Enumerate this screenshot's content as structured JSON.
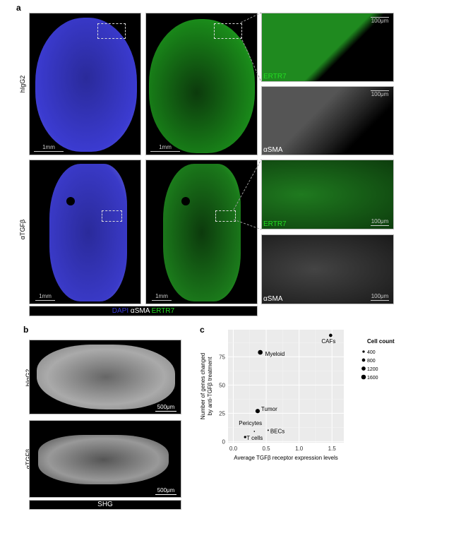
{
  "panel_a": {
    "label": "a",
    "rows": [
      "hIgG2",
      "αTGFβ"
    ],
    "scale_overview": "1mm",
    "scale_zoom": "100μm",
    "channel_ertr7": "ERTR7",
    "channel_asma": "αSMA",
    "legend": {
      "dapi": "DAPI",
      "asma": "αSMA",
      "ertr7": "ERTR7"
    },
    "colors": {
      "dapi": "#3a3ad8",
      "asma": "#ffffff",
      "ertr7": "#22dd22"
    }
  },
  "panel_b": {
    "label": "b",
    "rows": [
      "hIgG2",
      "αTGFβ"
    ],
    "scale": "500μm",
    "legend": "SHG"
  },
  "panel_c": {
    "label": "c"
  },
  "chart_data": {
    "type": "scatter",
    "xlabel": "Average TGFβ receptor expression levels",
    "ylabel": [
      "Number of genes changed",
      "by anti-TGFβ treatment"
    ],
    "xlim": [
      -0.08,
      1.68
    ],
    "ylim": [
      -1,
      99
    ],
    "xticks": [
      "0.0",
      "0.5",
      "1.0",
      "1.5"
    ],
    "xtick_values": [
      0,
      0.5,
      1.0,
      1.5
    ],
    "yticks": [
      "0",
      "25",
      "50",
      "75"
    ],
    "ytick_values": [
      0,
      25,
      50,
      75
    ],
    "grid": true,
    "points": [
      {
        "label": "CAFs",
        "x": 1.48,
        "y": 94,
        "cell_count": 800
      },
      {
        "label": "Myeloid",
        "x": 0.41,
        "y": 79,
        "cell_count": 1600
      },
      {
        "label": "Tumor",
        "x": 0.37,
        "y": 27,
        "cell_count": 1400
      },
      {
        "label": "Pericytes",
        "x": 0.32,
        "y": 9,
        "cell_count": 100
      },
      {
        "label": "BECs",
        "x": 0.53,
        "y": 10,
        "cell_count": 150
      },
      {
        "label": "T cells",
        "x": 0.18,
        "y": 4,
        "cell_count": 400
      }
    ],
    "legend": {
      "title": "Cell count",
      "placement": "right",
      "entries": [
        {
          "label": "400",
          "value": 400
        },
        {
          "label": "800",
          "value": 800
        },
        {
          "label": "1200",
          "value": 1200
        },
        {
          "label": "1600",
          "value": 1600
        }
      ]
    }
  }
}
